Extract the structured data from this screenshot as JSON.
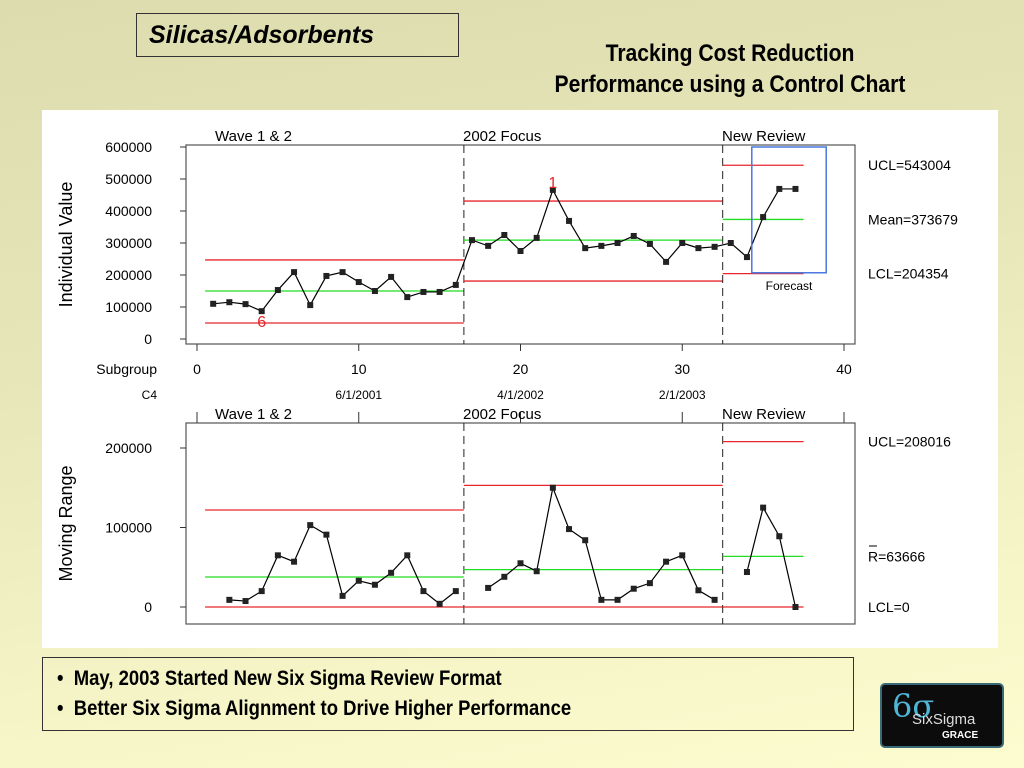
{
  "header": {
    "category": "Silicas/Adsorbents",
    "title_line1": "Tracking Cost Reduction",
    "title_line2": "Performance using a Control Chart"
  },
  "bullets": [
    "May, 2003 Started New Six Sigma Review Format",
    "Better Six Sigma Alignment to Drive Higher Performance"
  ],
  "logo": {
    "mark": "6σ",
    "name": "SixSigma",
    "company": "GRACE"
  },
  "colors": {
    "limit": "#e8262b",
    "center": "#22dd22",
    "data": "#000000",
    "forecast_box": "#4a78e0"
  },
  "chart_data": [
    {
      "type": "line",
      "name": "Individuals chart",
      "ylabel": "Individual Value",
      "ylim": [
        0,
        600000
      ],
      "yticks": [
        "0",
        "100000",
        "200000",
        "300000",
        "400000",
        "500000",
        "600000"
      ],
      "ytick_values": [
        0,
        100000,
        200000,
        300000,
        400000,
        500000,
        600000
      ],
      "xlabel": "Subgroup",
      "xlim": [
        0,
        40
      ],
      "xticks": [
        "0",
        "10",
        "20",
        "30",
        "40"
      ],
      "xtick_values": [
        0,
        10,
        20,
        30,
        40
      ],
      "secondary_axis_label": "C4",
      "secondary_ticks": [
        "6/1/2001",
        "4/1/2002",
        "2/1/2003"
      ],
      "secondary_tick_values": [
        10,
        20,
        30
      ],
      "phases": [
        {
          "label": "Wave 1 & 2",
          "start": 0.5,
          "end": 16.5,
          "ucl": 247000,
          "center": 150000,
          "lcl": 50000
        },
        {
          "label": "2002 Focus",
          "start": 16.5,
          "end": 32.5,
          "ucl": 431000,
          "center": 309000,
          "lcl": 181000
        },
        {
          "label": "New Review",
          "start": 32.5,
          "end": 37.5,
          "ucl": 543004,
          "center": 373679,
          "lcl": 204354
        }
      ],
      "limit_labels": [
        "UCL=543004",
        "Mean=373679",
        "LCL=204354"
      ],
      "x": [
        1,
        2,
        3,
        4,
        5,
        6,
        7,
        8,
        9,
        10,
        11,
        12,
        13,
        14,
        15,
        16,
        17,
        18,
        19,
        20,
        21,
        22,
        23,
        24,
        25,
        26,
        27,
        28,
        29,
        30,
        31,
        32,
        33,
        34,
        35,
        36,
        37
      ],
      "values": [
        110000,
        115000,
        109000,
        87000,
        153000,
        209000,
        106000,
        197000,
        209000,
        178000,
        150000,
        194000,
        131000,
        147000,
        147000,
        169000,
        309000,
        291000,
        325000,
        275000,
        316000,
        466000,
        369000,
        284000,
        291000,
        300000,
        322000,
        297000,
        241000,
        300000,
        284000,
        288000,
        300000,
        256000,
        381000,
        469000,
        469000
      ],
      "annotations": [
        {
          "x": 22,
          "text": "1"
        },
        {
          "x": 4,
          "text": "6"
        }
      ],
      "forecast": {
        "label": "Forecast",
        "x_range": [
          34.3,
          38.9
        ],
        "y_range": [
          207000,
          600000
        ]
      }
    },
    {
      "type": "line",
      "name": "Moving range chart",
      "ylabel": "Moving Range",
      "ylim": [
        0,
        200000
      ],
      "yticks": [
        "0",
        "100000",
        "200000"
      ],
      "ytick_values": [
        0,
        100000,
        200000
      ],
      "phases": [
        {
          "label": "Wave 1 & 2",
          "start": 0.5,
          "end": 16.5,
          "ucl": 122000,
          "center": 37700,
          "lcl": 0
        },
        {
          "label": "2002 Focus",
          "start": 16.5,
          "end": 32.5,
          "ucl": 153000,
          "center": 47000,
          "lcl": 0
        },
        {
          "label": "New Review",
          "start": 32.5,
          "end": 37.5,
          "ucl": 208016,
          "center": 63666,
          "lcl": 0
        }
      ],
      "limit_labels": [
        "UCL=208016",
        "R=63666",
        "LCL=0"
      ],
      "segments": [
        {
          "x": [
            2,
            3,
            4,
            5,
            6,
            7,
            8,
            9,
            10,
            11,
            12,
            13,
            14,
            15,
            16
          ],
          "values": [
            9000,
            7500,
            20000,
            65000,
            57000,
            103000,
            91000,
            14000,
            33000,
            28000,
            43000,
            65000,
            20000,
            4000,
            20000
          ]
        },
        {
          "x": [
            18,
            19,
            20,
            21,
            22,
            23,
            24,
            25,
            26,
            27,
            28,
            29,
            30,
            31,
            32
          ],
          "values": [
            24000,
            38000,
            55000,
            45000,
            150000,
            98000,
            84000,
            9000,
            9000,
            23000,
            30000,
            57000,
            65000,
            21000,
            9000
          ]
        },
        {
          "x": [
            34,
            35,
            36,
            37
          ],
          "values": [
            44000,
            125000,
            89000,
            0
          ]
        }
      ]
    }
  ]
}
